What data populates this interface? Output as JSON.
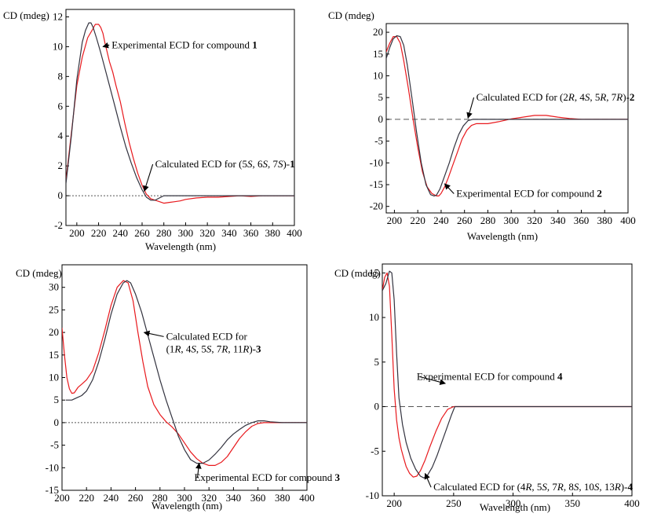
{
  "colors": {
    "experimental": "#e8191d",
    "calculated": "#33333f",
    "axis": "#000000",
    "zero": "#555555"
  },
  "chart_data": [
    {
      "type": "line",
      "ylabel": "CD (mdeg)",
      "xlabel": "Wavelength (nm)",
      "xlim": [
        190,
        400
      ],
      "ylim": [
        -2,
        12.5
      ],
      "xticks": [
        200,
        220,
        240,
        260,
        280,
        300,
        320,
        340,
        360,
        380,
        400
      ],
      "yticks": [
        -2,
        0,
        2,
        4,
        6,
        8,
        10,
        12
      ],
      "zero_line": "dotted",
      "annotations": [
        {
          "prefix": "Experimental ECD for compound ",
          "bold": "1",
          "at": [
            224,
            10
          ],
          "text_at": [
            232,
            9.9
          ]
        },
        {
          "prefix": "Calculated ECD for (5",
          "i1": "S",
          "m1": ", 6",
          "i2": "S",
          "m2": ", 7",
          "i3": "S",
          "suffix": ")-",
          "bold": "1",
          "at": [
            262,
            0.3
          ],
          "text_at": [
            272,
            1.9
          ]
        }
      ],
      "series": [
        {
          "name": "Experimental",
          "role": "experimental",
          "x": [
            190,
            195,
            200,
            205,
            210,
            214,
            217,
            220,
            222,
            224,
            226,
            228,
            230,
            233,
            236,
            240,
            244,
            248,
            252,
            256,
            260,
            264,
            268,
            272,
            276,
            280,
            285,
            290,
            295,
            300,
            310,
            320,
            330,
            340,
            350,
            360,
            370,
            380,
            390,
            400
          ],
          "y": [
            1.0,
            4.2,
            7.4,
            9.3,
            10.6,
            11.1,
            11.5,
            11.5,
            11.3,
            10.9,
            10.2,
            9.6,
            9.0,
            8.3,
            7.4,
            6.3,
            4.9,
            3.6,
            2.5,
            1.5,
            0.7,
            0.1,
            -0.2,
            -0.3,
            -0.4,
            -0.5,
            -0.45,
            -0.4,
            -0.35,
            -0.25,
            -0.15,
            -0.1,
            -0.1,
            -0.05,
            0.0,
            -0.05,
            0.0,
            0.0,
            0.0,
            0.0
          ]
        },
        {
          "name": "Calculated",
          "role": "calculated",
          "x": [
            190,
            195,
            200,
            205,
            208,
            211,
            213,
            215,
            218,
            222,
            226,
            230,
            235,
            240,
            245,
            250,
            255,
            260,
            264,
            268,
            272,
            276,
            280,
            290,
            300,
            320,
            340,
            360,
            380,
            400
          ],
          "y": [
            0.8,
            4.0,
            7.8,
            10.3,
            11.1,
            11.6,
            11.6,
            11.3,
            10.6,
            9.6,
            8.5,
            7.4,
            6.0,
            4.6,
            3.3,
            2.2,
            1.2,
            0.4,
            -0.1,
            -0.3,
            -0.3,
            -0.15,
            0.0,
            0.0,
            0.0,
            0.0,
            0.0,
            0.0,
            0.0,
            0.0
          ]
        }
      ]
    },
    {
      "type": "line",
      "ylabel": "CD (mdeg)",
      "xlabel": "Wavelength (nm)",
      "xlim": [
        193,
        400
      ],
      "ylim": [
        -21.5,
        22
      ],
      "xticks": [
        200,
        220,
        240,
        260,
        280,
        300,
        320,
        340,
        360,
        380,
        400
      ],
      "yticks": [
        -20,
        -15,
        -10,
        -5,
        0,
        5,
        10,
        15,
        20
      ],
      "zero_line": "dashed",
      "annotations": [
        {
          "prefix": "Calculated ECD for (2",
          "i1": "R",
          "m1": ", 4",
          "i2": "S",
          "m2": ", 5",
          "i3": "R",
          "m3": ", 7",
          "i4": "R",
          "suffix": ")-",
          "bold": "2",
          "at": [
            263,
            0.3
          ],
          "text_at": [
            270,
            4.3
          ]
        },
        {
          "prefix": "Experimental ECD for compound ",
          "bold": "2",
          "at": [
            243,
            -14.8
          ],
          "text_at": [
            253,
            -17.8
          ]
        }
      ],
      "series": [
        {
          "name": "Experimental",
          "role": "experimental",
          "x": [
            193,
            196,
            199,
            202,
            205,
            208,
            212,
            216,
            220,
            224,
            228,
            232,
            236,
            238,
            240,
            243,
            246,
            250,
            254,
            258,
            262,
            266,
            270,
            275,
            280,
            290,
            300,
            310,
            320,
            330,
            340,
            350,
            360,
            370,
            380,
            390,
            400
          ],
          "y": [
            15.5,
            17.5,
            19.0,
            19.0,
            17.5,
            13.5,
            7.0,
            0.0,
            -6.5,
            -12.0,
            -15.5,
            -17.0,
            -17.6,
            -17.6,
            -17.0,
            -15.5,
            -13.5,
            -10.5,
            -7.5,
            -4.5,
            -2.5,
            -1.4,
            -1.0,
            -1.0,
            -1.0,
            -0.5,
            0.1,
            0.5,
            0.9,
            0.9,
            0.5,
            0.2,
            0.0,
            0.0,
            0.0,
            0.0,
            0.0
          ]
        },
        {
          "name": "Calculated",
          "role": "calculated",
          "x": [
            193,
            196,
            199,
            202,
            205,
            208,
            211,
            215,
            219,
            223,
            227,
            231,
            234,
            236,
            239,
            243,
            247,
            251,
            255,
            259,
            263,
            267,
            275,
            300,
            340,
            400
          ],
          "y": [
            14.0,
            16.5,
            18.5,
            19.2,
            19.0,
            17.0,
            12.5,
            5.0,
            -3.0,
            -10.0,
            -15.0,
            -17.3,
            -17.6,
            -17.4,
            -16.0,
            -13.0,
            -10.0,
            -6.5,
            -3.5,
            -1.5,
            -0.3,
            0.0,
            0.0,
            0.0,
            0.0,
            0.0
          ]
        }
      ]
    },
    {
      "type": "line",
      "ylabel": "CD (mdeg)",
      "xlabel": "Wavelength (nm)",
      "xlim": [
        200,
        400
      ],
      "ylim": [
        -15,
        35
      ],
      "xticks": [
        200,
        220,
        240,
        260,
        280,
        300,
        320,
        340,
        360,
        380,
        400
      ],
      "yticks": [
        -15,
        -10,
        -5,
        0,
        5,
        10,
        15,
        20,
        25,
        30
      ],
      "zero_line": "dotted",
      "annotations": [
        {
          "line1": "Calculated ECD for",
          "prefix": "(1",
          "i1": "R",
          "m1": ", 4",
          "i2": "S",
          "m2": ", 5",
          "i3": "S",
          "m3": ", 7",
          "i4": "R",
          "m4": ", 11",
          "i5": "R",
          "suffix": ")-",
          "bold": "3",
          "at": [
            267,
            20
          ],
          "text_at": [
            285,
            15.6
          ]
        },
        {
          "prefix": "Experimental ECD for compound ",
          "bold": "3",
          "at": [
            312,
            -9
          ],
          "text_at": [
            308,
            -12.9
          ]
        }
      ],
      "series": [
        {
          "name": "Experimental",
          "role": "experimental",
          "x": [
            200,
            202,
            204,
            206,
            208,
            210,
            213,
            216,
            220,
            225,
            230,
            235,
            240,
            245,
            250,
            254,
            258,
            262,
            266,
            270,
            275,
            280,
            285,
            290,
            295,
            300,
            305,
            310,
            315,
            320,
            325,
            330,
            335,
            340,
            345,
            350,
            355,
            360,
            365,
            370,
            380,
            390,
            400
          ],
          "y": [
            21.0,
            15.0,
            10.0,
            7.5,
            6.5,
            6.6,
            7.8,
            8.5,
            9.5,
            11.5,
            15.5,
            20.5,
            26.0,
            30.0,
            31.5,
            31.0,
            27.0,
            20.0,
            13.5,
            8.0,
            4.0,
            1.8,
            0.2,
            -1.0,
            -2.5,
            -4.5,
            -6.5,
            -8.0,
            -9.0,
            -9.5,
            -9.5,
            -8.8,
            -7.5,
            -5.5,
            -3.5,
            -2.0,
            -0.8,
            -0.2,
            0.0,
            0.0,
            0.0,
            0.0,
            0.0
          ]
        },
        {
          "name": "Calculated",
          "role": "calculated",
          "x": [
            203,
            208,
            212,
            216,
            220,
            225,
            230,
            235,
            240,
            245,
            250,
            253,
            256,
            260,
            265,
            270,
            275,
            280,
            285,
            290,
            295,
            300,
            305,
            310,
            315,
            320,
            325,
            330,
            335,
            340,
            345,
            350,
            355,
            360,
            365,
            370,
            380,
            390,
            400
          ],
          "y": [
            5.0,
            5.0,
            5.5,
            6.0,
            7.0,
            9.5,
            13.5,
            18.5,
            24.0,
            28.5,
            31.0,
            31.5,
            31.0,
            28.5,
            24.5,
            19.5,
            14.5,
            9.5,
            5.0,
            1.0,
            -3.0,
            -6.0,
            -8.2,
            -9.0,
            -9.0,
            -8.3,
            -7.0,
            -5.5,
            -3.8,
            -2.5,
            -1.5,
            -0.6,
            0.0,
            0.4,
            0.4,
            0.2,
            0.0,
            0.0,
            0.0
          ]
        }
      ]
    },
    {
      "type": "line",
      "ylabel": "CD (mdeg)",
      "xlabel": "Wavelength (nm)",
      "xlim": [
        190,
        400
      ],
      "ylim": [
        -10,
        16
      ],
      "xticks": [
        200,
        250,
        300,
        350,
        400
      ],
      "yticks": [
        -10,
        -5,
        0,
        5,
        10,
        15
      ],
      "zero_line": "dashed",
      "annotations": [
        {
          "prefix": "Experimental ECD for compound ",
          "bold": "4",
          "at": [
            243,
            2.6
          ],
          "text_at": [
            219,
            3.0
          ]
        },
        {
          "prefix": "Calculated ECD for (4",
          "i1": "R",
          "m1": ", 5",
          "i2": "S",
          "m2": ", 7",
          "i3": "R",
          "m3": ", 8",
          "i4": "S",
          "m4": ", 10",
          "i5": "S",
          "m5": ", 13",
          "i6": "R",
          "suffix": ")-",
          "bold": "4",
          "at": [
            226,
            -7.5
          ],
          "text_at": [
            233,
            -9.4
          ]
        }
      ],
      "series": [
        {
          "name": "Experimental",
          "role": "experimental",
          "x": [
            190,
            192,
            194,
            196,
            198,
            200,
            202,
            204,
            206,
            208,
            210,
            213,
            216,
            219,
            222,
            226,
            230,
            235,
            240,
            245,
            250,
            260,
            300,
            350,
            400
          ],
          "y": [
            13.0,
            14.5,
            15.0,
            13.5,
            8.0,
            2.0,
            -1.5,
            -3.5,
            -4.8,
            -5.8,
            -6.7,
            -7.5,
            -7.9,
            -7.8,
            -7.2,
            -6.0,
            -4.5,
            -2.8,
            -1.3,
            -0.3,
            0.0,
            0.0,
            0.0,
            0.0,
            0.0
          ]
        },
        {
          "name": "Calculated",
          "role": "calculated",
          "x": [
            190,
            193,
            196,
            198,
            200,
            202,
            204,
            207,
            210,
            214,
            218,
            222,
            225,
            228,
            232,
            236,
            240,
            244,
            248,
            251,
            260,
            300,
            350,
            400
          ],
          "y": [
            13.0,
            13.8,
            15.2,
            15.0,
            12.0,
            6.0,
            1.0,
            -2.0,
            -4.0,
            -5.8,
            -7.0,
            -7.8,
            -8.0,
            -7.7,
            -6.8,
            -5.5,
            -4.0,
            -2.5,
            -1.0,
            0.0,
            0.0,
            0.0,
            0.0,
            0.0
          ]
        }
      ]
    }
  ]
}
